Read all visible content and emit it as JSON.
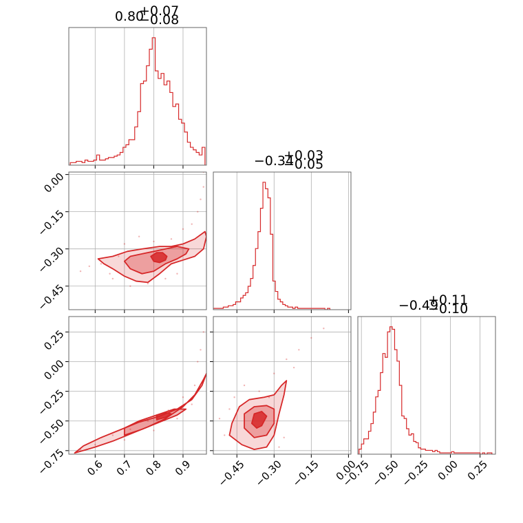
{
  "chart_data": {
    "type": "corner",
    "color": "#d62728",
    "parameters": [
      {
        "title_value": "0.80",
        "title_plus": "+0.07",
        "title_minus": "−0.08",
        "range": [
          0.51,
          0.98
        ],
        "ticks": [
          0.6,
          0.7,
          0.8,
          0.9
        ],
        "tick_labels": [
          "0.6",
          "0.7",
          "0.8",
          "0.9"
        ]
      },
      {
        "title_value": "−0.34",
        "title_plus": "+0.03",
        "title_minus": "−0.05",
        "range": [
          -0.545,
          0.01
        ],
        "ticks": [
          -0.45,
          -0.3,
          -0.15,
          0.0
        ],
        "tick_labels": [
          "−0.45",
          "−0.30",
          "−0.15",
          "0.00"
        ]
      },
      {
        "title_value": "−0.49",
        "title_plus": "+0.11",
        "title_minus": "−0.10",
        "range": [
          -0.78,
          0.38
        ],
        "ticks": [
          -0.75,
          -0.5,
          -0.25,
          0.0,
          0.25
        ],
        "tick_labels": [
          "−0.75",
          "−0.50",
          "−0.25",
          "0.00",
          "0.25"
        ]
      }
    ],
    "histograms": [
      {
        "param": 0,
        "x": [
          0.52,
          0.53,
          0.54,
          0.55,
          0.56,
          0.57,
          0.58,
          0.59,
          0.6,
          0.61,
          0.62,
          0.63,
          0.64,
          0.65,
          0.66,
          0.67,
          0.68,
          0.69,
          0.7,
          0.71,
          0.72,
          0.73,
          0.74,
          0.75,
          0.76,
          0.77,
          0.78,
          0.79,
          0.8,
          0.81,
          0.82,
          0.83,
          0.84,
          0.85,
          0.86,
          0.87,
          0.88,
          0.89,
          0.9,
          0.91,
          0.92,
          0.93,
          0.94,
          0.95,
          0.96,
          0.97
        ],
        "y": [
          2,
          2,
          3,
          3,
          2,
          4,
          3,
          3,
          4,
          8,
          4,
          4,
          5,
          6,
          6,
          7,
          8,
          10,
          14,
          16,
          20,
          20,
          30,
          42,
          64,
          66,
          78,
          91,
          100,
          74,
          68,
          72,
          63,
          66,
          57,
          46,
          48,
          36,
          33,
          26,
          18,
          14,
          12,
          10,
          8,
          14
        ]
      },
      {
        "param": 1,
        "x": [
          -0.54,
          -0.53,
          -0.52,
          -0.51,
          -0.5,
          -0.49,
          -0.48,
          -0.47,
          -0.46,
          -0.45,
          -0.44,
          -0.43,
          -0.42,
          -0.41,
          -0.4,
          -0.39,
          -0.38,
          -0.37,
          -0.36,
          -0.35,
          -0.34,
          -0.33,
          -0.32,
          -0.31,
          -0.3,
          -0.29,
          -0.28,
          -0.27,
          -0.26,
          -0.25,
          -0.24,
          -0.23,
          -0.22,
          -0.21,
          -0.2,
          -0.19,
          -0.18,
          -0.17,
          -0.16,
          -0.15,
          -0.14,
          -0.13,
          -0.12,
          -0.11,
          -0.1,
          -0.09,
          -0.08
        ],
        "y": [
          1,
          1,
          1,
          1,
          2,
          2,
          3,
          3,
          4,
          6,
          6,
          9,
          11,
          13,
          18,
          24,
          34,
          47,
          60,
          78,
          98,
          93,
          86,
          58,
          22,
          14,
          8,
          6,
          4,
          3,
          2,
          2,
          1,
          2,
          1,
          1,
          1,
          1,
          1,
          1,
          1,
          1,
          1,
          1,
          1,
          0,
          1
        ]
      },
      {
        "param": 2,
        "x": [
          -0.76,
          -0.74,
          -0.72,
          -0.7,
          -0.68,
          -0.66,
          -0.64,
          -0.62,
          -0.6,
          -0.58,
          -0.56,
          -0.54,
          -0.52,
          -0.5,
          -0.48,
          -0.46,
          -0.44,
          -0.42,
          -0.4,
          -0.38,
          -0.36,
          -0.34,
          -0.32,
          -0.3,
          -0.28,
          -0.26,
          -0.24,
          -0.22,
          -0.2,
          -0.18,
          -0.16,
          -0.14,
          -0.12,
          -0.1,
          -0.08,
          -0.06,
          -0.04,
          -0.02,
          0.0,
          0.02,
          0.04,
          0.06,
          0.08,
          0.1,
          0.12,
          0.14,
          0.16,
          0.18,
          0.2,
          0.22,
          0.24,
          0.26,
          0.28,
          0.3,
          0.32,
          0.34
        ],
        "y": [
          4,
          8,
          12,
          12,
          18,
          24,
          33,
          45,
          50,
          64,
          79,
          76,
          96,
          100,
          98,
          82,
          73,
          54,
          30,
          28,
          20,
          15,
          16,
          10,
          9,
          5,
          4,
          4,
          3,
          3,
          3,
          2,
          3,
          2,
          1,
          1,
          1,
          1,
          1,
          2,
          1,
          1,
          1,
          1,
          1,
          1,
          1,
          1,
          1,
          1,
          1,
          0,
          1,
          0,
          1,
          1
        ]
      }
    ],
    "contour_2d": [
      {
        "x_param": 0,
        "y_param": 1,
        "levels": [
          [
            [
              0.61,
              -0.34
            ],
            [
              0.63,
              -0.36
            ],
            [
              0.66,
              -0.38
            ],
            [
              0.7,
              -0.41
            ],
            [
              0.74,
              -0.43
            ],
            [
              0.78,
              -0.435
            ],
            [
              0.82,
              -0.4
            ],
            [
              0.86,
              -0.36
            ],
            [
              0.9,
              -0.345
            ],
            [
              0.94,
              -0.33
            ],
            [
              0.97,
              -0.3
            ],
            [
              0.98,
              -0.25
            ],
            [
              0.975,
              -0.23
            ],
            [
              0.94,
              -0.26
            ],
            [
              0.9,
              -0.28
            ],
            [
              0.86,
              -0.29
            ],
            [
              0.82,
              -0.29
            ],
            [
              0.76,
              -0.3
            ],
            [
              0.71,
              -0.31
            ],
            [
              0.66,
              -0.33
            ]
          ],
          [
            [
              0.7,
              -0.35
            ],
            [
              0.72,
              -0.38
            ],
            [
              0.76,
              -0.4
            ],
            [
              0.8,
              -0.39
            ],
            [
              0.84,
              -0.36
            ],
            [
              0.88,
              -0.34
            ],
            [
              0.91,
              -0.32
            ],
            [
              0.92,
              -0.3
            ],
            [
              0.88,
              -0.29
            ],
            [
              0.84,
              -0.3
            ],
            [
              0.8,
              -0.31
            ],
            [
              0.76,
              -0.32
            ],
            [
              0.72,
              -0.33
            ]
          ],
          [
            [
              0.79,
              -0.33
            ],
            [
              0.8,
              -0.35
            ],
            [
              0.82,
              -0.355
            ],
            [
              0.84,
              -0.345
            ],
            [
              0.845,
              -0.33
            ],
            [
              0.83,
              -0.315
            ],
            [
              0.81,
              -0.315
            ]
          ]
        ],
        "points": [
          [
            0.62,
            -0.36
          ],
          [
            0.65,
            -0.4
          ],
          [
            0.68,
            -0.33
          ],
          [
            0.72,
            -0.45
          ],
          [
            0.75,
            -0.25
          ],
          [
            0.78,
            -0.44
          ],
          [
            0.8,
            -0.27
          ],
          [
            0.86,
            -0.26
          ],
          [
            0.9,
            -0.22
          ],
          [
            0.93,
            -0.2
          ],
          [
            0.95,
            -0.15
          ],
          [
            0.96,
            -0.1
          ],
          [
            0.97,
            -0.05
          ],
          [
            0.97,
            0.01
          ],
          [
            0.58,
            -0.37
          ],
          [
            0.55,
            -0.39
          ],
          [
            0.88,
            -0.4
          ],
          [
            0.7,
            -0.28
          ],
          [
            0.66,
            -0.42
          ],
          [
            0.84,
            -0.42
          ]
        ]
      },
      {
        "x_param": 0,
        "y_param": 2,
        "levels": [
          [
            [
              0.53,
              -0.77
            ],
            [
              0.6,
              -0.72
            ],
            [
              0.66,
              -0.67
            ],
            [
              0.72,
              -0.61
            ],
            [
              0.78,
              -0.55
            ],
            [
              0.84,
              -0.48
            ],
            [
              0.9,
              -0.38
            ],
            [
              0.94,
              -0.28
            ],
            [
              0.97,
              -0.15
            ],
            [
              0.98,
              -0.1
            ],
            [
              0.965,
              -0.2
            ],
            [
              0.93,
              -0.32
            ],
            [
              0.88,
              -0.4
            ],
            [
              0.82,
              -0.46
            ],
            [
              0.75,
              -0.51
            ],
            [
              0.68,
              -0.58
            ],
            [
              0.62,
              -0.64
            ],
            [
              0.56,
              -0.71
            ]
          ],
          [
            [
              0.7,
              -0.62
            ],
            [
              0.76,
              -0.57
            ],
            [
              0.82,
              -0.51
            ],
            [
              0.88,
              -0.45
            ],
            [
              0.91,
              -0.4
            ],
            [
              0.87,
              -0.4
            ],
            [
              0.81,
              -0.45
            ],
            [
              0.75,
              -0.5
            ],
            [
              0.7,
              -0.56
            ]
          ],
          [
            [
              0.81,
              -0.49
            ],
            [
              0.84,
              -0.47
            ],
            [
              0.86,
              -0.44
            ],
            [
              0.84,
              -0.43
            ],
            [
              0.81,
              -0.45
            ]
          ]
        ],
        "points": [
          [
            0.55,
            -0.74
          ],
          [
            0.6,
            -0.7
          ],
          [
            0.66,
            -0.62
          ],
          [
            0.72,
            -0.57
          ],
          [
            0.78,
            -0.5
          ],
          [
            0.85,
            -0.41
          ],
          [
            0.9,
            -0.3
          ],
          [
            0.94,
            -0.2
          ],
          [
            0.95,
            0.0
          ],
          [
            0.96,
            0.1
          ],
          [
            0.97,
            0.25
          ],
          [
            0.7,
            -0.66
          ],
          [
            0.8,
            -0.58
          ],
          [
            0.88,
            -0.48
          ],
          [
            0.93,
            -0.36
          ]
        ]
      },
      {
        "x_param": 1,
        "y_param": 2,
        "levels": [
          [
            [
              -0.48,
              -0.62
            ],
            [
              -0.47,
              -0.52
            ],
            [
              -0.44,
              -0.38
            ],
            [
              -0.4,
              -0.32
            ],
            [
              -0.34,
              -0.3
            ],
            [
              -0.3,
              -0.28
            ],
            [
              -0.27,
              -0.2
            ],
            [
              -0.25,
              -0.16
            ],
            [
              -0.26,
              -0.28
            ],
            [
              -0.28,
              -0.44
            ],
            [
              -0.3,
              -0.62
            ],
            [
              -0.33,
              -0.72
            ],
            [
              -0.38,
              -0.74
            ],
            [
              -0.43,
              -0.7
            ]
          ],
          [
            [
              -0.42,
              -0.56
            ],
            [
              -0.42,
              -0.44
            ],
            [
              -0.38,
              -0.38
            ],
            [
              -0.33,
              -0.37
            ],
            [
              -0.3,
              -0.4
            ],
            [
              -0.3,
              -0.52
            ],
            [
              -0.33,
              -0.62
            ],
            [
              -0.38,
              -0.64
            ]
          ],
          [
            [
              -0.39,
              -0.52
            ],
            [
              -0.38,
              -0.44
            ],
            [
              -0.35,
              -0.42
            ],
            [
              -0.33,
              -0.46
            ],
            [
              -0.35,
              -0.54
            ],
            [
              -0.37,
              -0.56
            ]
          ]
        ],
        "points": [
          [
            -0.52,
            -0.48
          ],
          [
            -0.5,
            -0.62
          ],
          [
            -0.46,
            -0.3
          ],
          [
            -0.42,
            -0.2
          ],
          [
            -0.36,
            -0.25
          ],
          [
            -0.3,
            -0.1
          ],
          [
            -0.25,
            0.02
          ],
          [
            -0.2,
            0.1
          ],
          [
            -0.15,
            0.2
          ],
          [
            -0.1,
            0.28
          ],
          [
            -0.26,
            -0.64
          ],
          [
            -0.28,
            -0.72
          ],
          [
            -0.48,
            -0.4
          ],
          [
            -0.32,
            -0.3
          ],
          [
            -0.22,
            -0.05
          ]
        ]
      }
    ]
  }
}
